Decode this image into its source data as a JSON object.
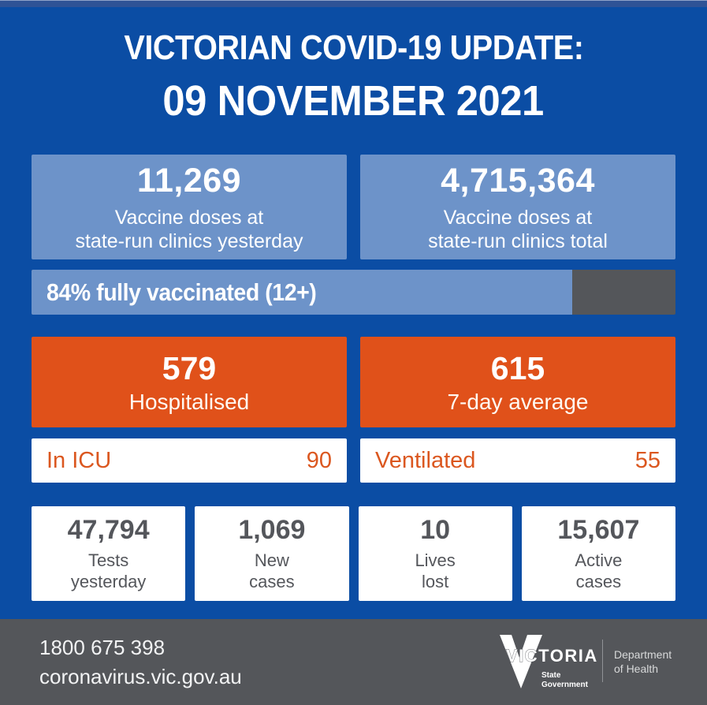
{
  "title": {
    "line1": "VICTORIAN COVID-19 UPDATE:",
    "line2": "09 NOVEMBER 2021"
  },
  "vaccine_cards": [
    {
      "value": "11,269",
      "label": "Vaccine doses at\nstate-run clinics yesterday"
    },
    {
      "value": "4,715,364",
      "label": "Vaccine doses at\nstate-run clinics total"
    }
  ],
  "progress": {
    "label": "84% fully vaccinated (12+)",
    "percent": 84,
    "fill_color": "#6D93C9",
    "track_color": "#54565A"
  },
  "hospital_cards": [
    {
      "value": "579",
      "label": "Hospitalised"
    },
    {
      "value": "615",
      "label": "7-day average"
    }
  ],
  "icu_rows": [
    {
      "label": "In ICU",
      "value": "90"
    },
    {
      "label": "Ventilated",
      "value": "55"
    }
  ],
  "stat_cards": [
    {
      "value": "47,794",
      "label": "Tests\nyesterday"
    },
    {
      "value": "1,069",
      "label": "New\ncases"
    },
    {
      "value": "10",
      "label": "Lives\nlost"
    },
    {
      "value": "15,607",
      "label": "Active\ncases"
    }
  ],
  "footer": {
    "phone": "1800 675 398",
    "url": "coronavirus.vic.gov.au",
    "logo": {
      "brand": "VICTORIA",
      "government": "State\nGovernment",
      "department": "Department\nof Health"
    }
  },
  "colors": {
    "background_blue": "#0B4DA4",
    "top_strip_blue": "#2F5396",
    "light_blue": "#6D93C9",
    "orange": "#E0511A",
    "dark_gray": "#54565A",
    "white": "#FFFFFF"
  }
}
